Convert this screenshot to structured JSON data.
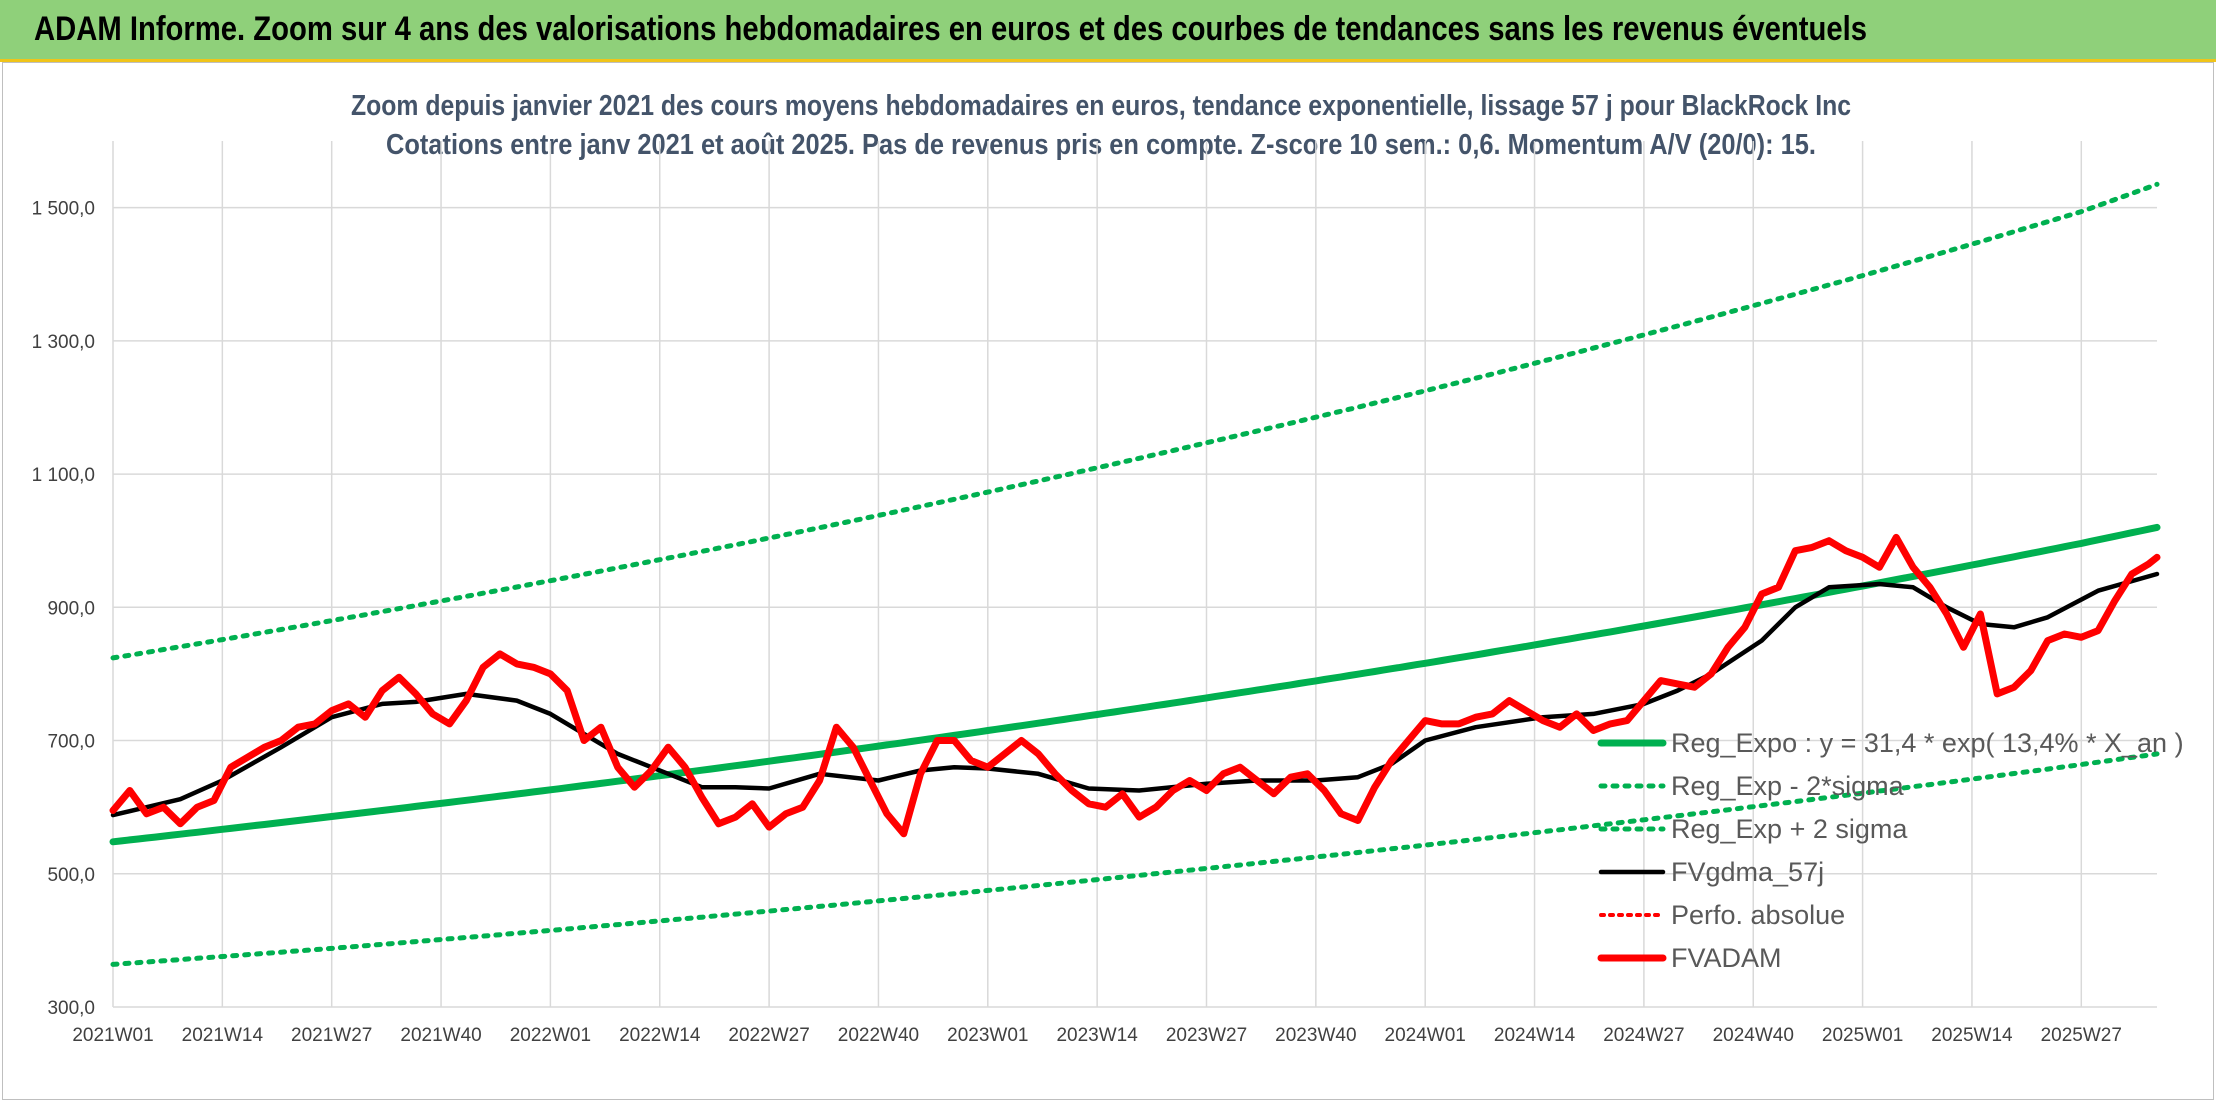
{
  "banner": {
    "title": "ADAM Informe. Zoom sur 4 ans des valorisations hebdomadaires en euros et des courbes de tendances sans les revenus éventuels"
  },
  "chart_data": {
    "type": "line",
    "title": "Zoom depuis janvier 2021 des cours moyens hebdomadaires en euros, tendance exponentielle, lissage 57 j pour BlackRock Inc",
    "subtitle": "Cotations entre janv 2021 et août 2025. Pas de revenus pris en compte. Z-score 10 sem.: 0,6. Momentum A/V (20/0): 15.",
    "xlabel": "",
    "ylabel": "",
    "ylim": [
      300,
      1600
    ],
    "yticks": [
      300,
      500,
      700,
      900,
      1100,
      1300,
      1500
    ],
    "ytick_labels": [
      "300,0",
      "500,0",
      "700,0",
      "900,0",
      "1 100,0",
      "1 300,0",
      "1 500,0"
    ],
    "x_range_weeks": [
      0,
      243
    ],
    "xticks": [
      0,
      13,
      26,
      39,
      52,
      65,
      78,
      91,
      104,
      117,
      130,
      143,
      156,
      169,
      182,
      195,
      208,
      221,
      234
    ],
    "xtick_labels": [
      "2021W01",
      "2021W14",
      "2021W27",
      "2021W40",
      "2022W01",
      "2022W14",
      "2022W27",
      "2022W40",
      "2023W01",
      "2023W14",
      "2023W27",
      "2023W40",
      "2024W01",
      "2024W14",
      "2024W27",
      "2024W40",
      "2025W01",
      "2025W14",
      "2025W27"
    ],
    "grid": true,
    "legend_position": "right-bottom",
    "series": [
      {
        "name": "Reg_Expo : y = 31,4 * exp( 13,4% *  X_an )",
        "color": "#00b050",
        "style": "solid",
        "x": [
          0,
          26,
          52,
          78,
          104,
          130,
          156,
          182,
          208,
          234,
          243
        ],
        "y": [
          548,
          586,
          626,
          669,
          715,
          764,
          816,
          872,
          932,
          996,
          1020
        ]
      },
      {
        "name": "Reg_Exp - 2*sigma",
        "color": "#00b050",
        "style": "dotted",
        "x": [
          0,
          26,
          52,
          78,
          104,
          130,
          156,
          182,
          208,
          234,
          243
        ],
        "y": [
          364,
          388,
          415,
          444,
          475,
          508,
          543,
          581,
          621,
          664,
          680
        ]
      },
      {
        "name": "Reg_Exp + 2 sigma",
        "color": "#00b050",
        "style": "dotted",
        "x": [
          0,
          26,
          52,
          78,
          104,
          130,
          156,
          182,
          208,
          234,
          243
        ],
        "y": [
          824,
          880,
          940,
          1004,
          1073,
          1147,
          1225,
          1309,
          1398,
          1494,
          1535
        ]
      },
      {
        "name": "FVgdma_57j",
        "color": "#000000",
        "style": "solid",
        "x": [
          0,
          8,
          13,
          20,
          26,
          32,
          36,
          42,
          48,
          52,
          56,
          60,
          66,
          70,
          74,
          78,
          84,
          91,
          96,
          100,
          104,
          110,
          116,
          122,
          130,
          136,
          143,
          148,
          152,
          156,
          162,
          170,
          176,
          182,
          186,
          190,
          196,
          200,
          204,
          210,
          214,
          218,
          222,
          226,
          230,
          236,
          243
        ],
        "y": [
          588,
          612,
          640,
          690,
          735,
          755,
          758,
          770,
          760,
          740,
          710,
          680,
          650,
          630,
          630,
          628,
          650,
          640,
          655,
          660,
          658,
          650,
          628,
          625,
          635,
          640,
          640,
          645,
          665,
          700,
          720,
          735,
          740,
          755,
          775,
          800,
          850,
          900,
          930,
          935,
          930,
          900,
          875,
          870,
          885,
          925,
          950
        ]
      },
      {
        "name": "Perfo. absolue",
        "color": "#ff0000",
        "style": "dotted",
        "x": [],
        "y": []
      },
      {
        "name": "FVADAM",
        "color": "#ff0000",
        "style": "solid",
        "x": [
          0,
          2,
          4,
          6,
          8,
          10,
          12,
          14,
          16,
          18,
          20,
          22,
          24,
          26,
          28,
          30,
          32,
          34,
          36,
          38,
          40,
          42,
          44,
          46,
          48,
          50,
          52,
          54,
          56,
          58,
          60,
          62,
          64,
          66,
          68,
          70,
          72,
          74,
          76,
          78,
          80,
          82,
          84,
          86,
          88,
          90,
          92,
          94,
          96,
          98,
          100,
          102,
          104,
          106,
          108,
          110,
          112,
          114,
          116,
          118,
          120,
          122,
          124,
          126,
          128,
          130,
          132,
          134,
          136,
          138,
          140,
          142,
          144,
          146,
          148,
          150,
          152,
          154,
          156,
          158,
          160,
          162,
          164,
          166,
          168,
          170,
          172,
          174,
          176,
          178,
          180,
          182,
          184,
          186,
          188,
          190,
          192,
          194,
          196,
          198,
          200,
          202,
          204,
          206,
          208,
          210,
          212,
          214,
          216,
          218,
          220,
          222,
          224,
          226,
          228,
          230,
          232,
          234,
          236,
          238,
          240,
          242,
          243
        ],
        "y": [
          595,
          625,
          590,
          600,
          575,
          600,
          610,
          660,
          675,
          690,
          700,
          720,
          725,
          745,
          755,
          735,
          775,
          795,
          770,
          740,
          725,
          760,
          810,
          830,
          815,
          810,
          800,
          775,
          700,
          720,
          660,
          630,
          655,
          690,
          660,
          615,
          575,
          585,
          605,
          570,
          590,
          600,
          640,
          720,
          690,
          640,
          590,
          560,
          650,
          700,
          700,
          670,
          660,
          680,
          700,
          680,
          650,
          625,
          605,
          600,
          620,
          585,
          600,
          625,
          640,
          625,
          650,
          660,
          640,
          620,
          645,
          650,
          625,
          590,
          580,
          630,
          670,
          700,
          730,
          725,
          725,
          735,
          740,
          760,
          745,
          730,
          720,
          740,
          715,
          725,
          730,
          760,
          790,
          785,
          780,
          800,
          840,
          870,
          920,
          930,
          985,
          990,
          1000,
          985,
          975,
          960,
          1005,
          960,
          930,
          890,
          840,
          890,
          770,
          780,
          805,
          850,
          860,
          855,
          865,
          910,
          950,
          965,
          975
        ]
      }
    ]
  }
}
